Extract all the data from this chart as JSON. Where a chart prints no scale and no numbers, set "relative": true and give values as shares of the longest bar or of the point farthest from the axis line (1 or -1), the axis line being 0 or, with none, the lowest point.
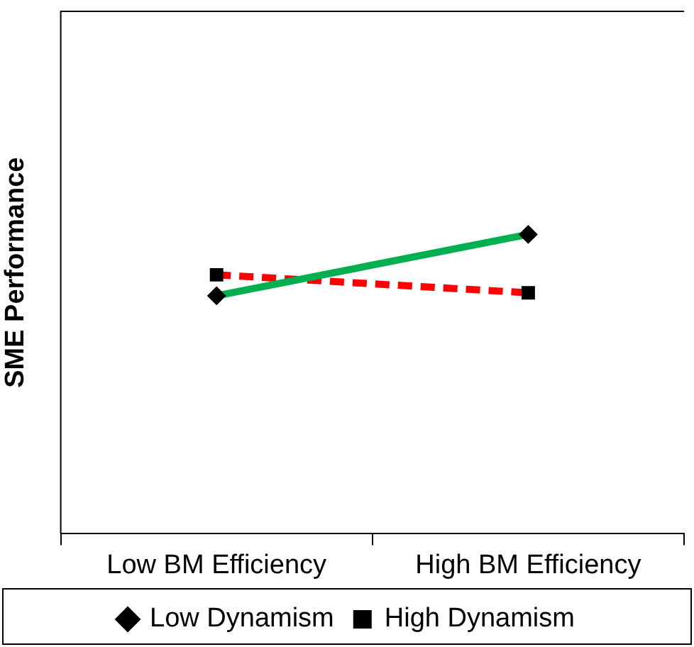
{
  "chart_data": {
    "type": "line",
    "ylabel": "SME Performance",
    "categories": [
      "Low BM Efficiency",
      "High BM Efficiency"
    ],
    "relative": true,
    "legend": "bottom",
    "grid": false,
    "series": [
      {
        "name": "Low Dynamism",
        "color": "#00b050",
        "values": [
          0.795,
          1
        ],
        "marker": "diamond",
        "line_style": "solid"
      },
      {
        "name": "High Dynamism",
        "color": "#ff0000",
        "values": [
          0.865,
          0.805
        ],
        "marker": "square",
        "line_style": "dashed"
      }
    ]
  }
}
